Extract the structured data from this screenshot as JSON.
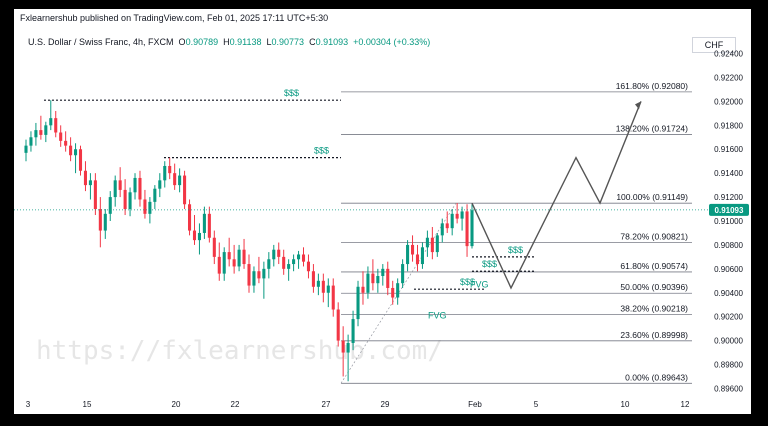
{
  "header": {
    "published": "Fxlearnershub published on TradingView.com, Feb 01, 2025 17:11 UTC+5:30",
    "symbol": "U.S. Dollar / Swiss Franc, 4h, FXCM",
    "o_label": "O",
    "o_value": "0.90789",
    "h_label": "H",
    "h_value": "0.91138",
    "l_label": "L",
    "l_value": "0.90773",
    "c_label": "C",
    "c_value": "0.91093",
    "change": "+0.00304 (+0.33%)",
    "currency": "CHF"
  },
  "watermark": "https://fxlearnershub.com/",
  "colors": {
    "up": "#089981",
    "down": "#f23645",
    "text": "#131722",
    "annotation": "#089981",
    "projection": "#555555",
    "price_badge": "#089981"
  },
  "chart_data": {
    "type": "candlestick",
    "title": "",
    "x_ticks": [
      "3",
      "15",
      "20",
      "22",
      "27",
      "29",
      "Feb",
      "5",
      "10",
      "12"
    ],
    "y_ticks": [
      0.896,
      0.898,
      0.9,
      0.902,
      0.904,
      0.906,
      0.908,
      0.91,
      0.912,
      0.914,
      0.916,
      0.918,
      0.92,
      0.922,
      0.924
    ],
    "ylim": [
      0.8952,
      0.9248
    ],
    "y_tick_labels": [
      "0.89600",
      "0.89800",
      "0.90000",
      "0.90200",
      "0.90400",
      "0.90600",
      "0.90800",
      "0.91000",
      "0.91200",
      "0.91400",
      "0.91600",
      "0.91800",
      "0.92000",
      "0.92200",
      "0.92400"
    ],
    "last_price": 0.91093,
    "last_price_label": "0.91093",
    "candles": [
      [
        0.9157,
        0.9168,
        0.915,
        0.9163
      ],
      [
        0.9163,
        0.9175,
        0.9158,
        0.917
      ],
      [
        0.917,
        0.9182,
        0.9163,
        0.9176
      ],
      [
        0.9176,
        0.9188,
        0.9168,
        0.9172
      ],
      [
        0.9172,
        0.9183,
        0.9166,
        0.918
      ],
      [
        0.918,
        0.9201,
        0.9176,
        0.9186
      ],
      [
        0.9186,
        0.9192,
        0.917,
        0.9174
      ],
      [
        0.9174,
        0.918,
        0.9162,
        0.9167
      ],
      [
        0.9167,
        0.9175,
        0.9158,
        0.9163
      ],
      [
        0.9163,
        0.917,
        0.915,
        0.9155
      ],
      [
        0.9155,
        0.9165,
        0.914,
        0.916
      ],
      [
        0.916,
        0.9163,
        0.9138,
        0.9142
      ],
      [
        0.9142,
        0.915,
        0.9125,
        0.913
      ],
      [
        0.913,
        0.914,
        0.9118,
        0.9134
      ],
      [
        0.9134,
        0.914,
        0.9105,
        0.911
      ],
      [
        0.911,
        0.912,
        0.9078,
        0.9092
      ],
      [
        0.9092,
        0.911,
        0.9085,
        0.9106
      ],
      [
        0.9106,
        0.9125,
        0.91,
        0.912
      ],
      [
        0.912,
        0.9138,
        0.9112,
        0.9134
      ],
      [
        0.9134,
        0.9145,
        0.912,
        0.9126
      ],
      [
        0.9126,
        0.9135,
        0.9105,
        0.911
      ],
      [
        0.911,
        0.9128,
        0.9104,
        0.9124
      ],
      [
        0.9124,
        0.914,
        0.9118,
        0.9136
      ],
      [
        0.9136,
        0.9142,
        0.9112,
        0.9118
      ],
      [
        0.9118,
        0.9126,
        0.9102,
        0.9106
      ],
      [
        0.9106,
        0.912,
        0.9098,
        0.9116
      ],
      [
        0.9116,
        0.913,
        0.911,
        0.9127
      ],
      [
        0.9127,
        0.914,
        0.912,
        0.9134
      ],
      [
        0.9134,
        0.915,
        0.9128,
        0.9146
      ],
      [
        0.9146,
        0.9153,
        0.9135,
        0.914
      ],
      [
        0.914,
        0.9148,
        0.9126,
        0.913
      ],
      [
        0.913,
        0.9144,
        0.9124,
        0.9138
      ],
      [
        0.9138,
        0.9142,
        0.911,
        0.9114
      ],
      [
        0.9114,
        0.9118,
        0.9088,
        0.9092
      ],
      [
        0.9092,
        0.9105,
        0.908,
        0.9084
      ],
      [
        0.9084,
        0.9098,
        0.9072,
        0.909
      ],
      [
        0.909,
        0.9112,
        0.9085,
        0.9106
      ],
      [
        0.9106,
        0.9112,
        0.9082,
        0.9086
      ],
      [
        0.9086,
        0.9092,
        0.9064,
        0.907
      ],
      [
        0.907,
        0.9082,
        0.905,
        0.9056
      ],
      [
        0.9056,
        0.9078,
        0.905,
        0.9074
      ],
      [
        0.9074,
        0.9086,
        0.9062,
        0.9068
      ],
      [
        0.9068,
        0.908,
        0.9056,
        0.9062
      ],
      [
        0.9062,
        0.908,
        0.9058,
        0.9076
      ],
      [
        0.9076,
        0.9085,
        0.906,
        0.9064
      ],
      [
        0.9064,
        0.9072,
        0.904,
        0.9046
      ],
      [
        0.9046,
        0.9062,
        0.904,
        0.9058
      ],
      [
        0.9058,
        0.907,
        0.9048,
        0.9052
      ],
      [
        0.9052,
        0.9066,
        0.9035,
        0.906
      ],
      [
        0.906,
        0.9074,
        0.9052,
        0.9068
      ],
      [
        0.9068,
        0.908,
        0.9062,
        0.9076
      ],
      [
        0.9076,
        0.9082,
        0.9064,
        0.907
      ],
      [
        0.907,
        0.9076,
        0.9055,
        0.906
      ],
      [
        0.906,
        0.9068,
        0.905,
        0.9064
      ],
      [
        0.9064,
        0.9072,
        0.9058,
        0.9068
      ],
      [
        0.9068,
        0.9075,
        0.906,
        0.9072
      ],
      [
        0.9072,
        0.9078,
        0.9062,
        0.9066
      ],
      [
        0.9066,
        0.9072,
        0.9052,
        0.9058
      ],
      [
        0.9058,
        0.9064,
        0.904,
        0.9045
      ],
      [
        0.9045,
        0.9056,
        0.9038,
        0.905
      ],
      [
        0.905,
        0.9056,
        0.9032,
        0.904
      ],
      [
        0.904,
        0.9052,
        0.9028,
        0.9046
      ],
      [
        0.9046,
        0.9052,
        0.902,
        0.9026
      ],
      [
        0.9026,
        0.9032,
        0.8995,
        0.9
      ],
      [
        0.9,
        0.9012,
        0.897,
        0.899
      ],
      [
        0.899,
        0.9005,
        0.8966,
        0.8998
      ],
      [
        0.8998,
        0.9025,
        0.8992,
        0.9018
      ],
      [
        0.9018,
        0.905,
        0.9012,
        0.9045
      ],
      [
        0.9045,
        0.9058,
        0.903,
        0.904
      ],
      [
        0.904,
        0.9062,
        0.9035,
        0.9056
      ],
      [
        0.9056,
        0.9068,
        0.9042,
        0.9048
      ],
      [
        0.9048,
        0.906,
        0.904,
        0.9054
      ],
      [
        0.9054,
        0.9064,
        0.9046,
        0.906
      ],
      [
        0.906,
        0.9066,
        0.9038,
        0.9044
      ],
      [
        0.9044,
        0.905,
        0.903,
        0.9036
      ],
      [
        0.9036,
        0.9052,
        0.903,
        0.9048
      ],
      [
        0.9048,
        0.9068,
        0.9044,
        0.9064
      ],
      [
        0.9064,
        0.9084,
        0.9058,
        0.908
      ],
      [
        0.908,
        0.9088,
        0.9066,
        0.9072
      ],
      [
        0.9072,
        0.908,
        0.9058,
        0.9064
      ],
      [
        0.9064,
        0.9082,
        0.906,
        0.9078
      ],
      [
        0.9078,
        0.9092,
        0.907,
        0.9086
      ],
      [
        0.9086,
        0.9095,
        0.9068,
        0.9074
      ],
      [
        0.9074,
        0.909,
        0.907,
        0.9088
      ],
      [
        0.9088,
        0.9102,
        0.9082,
        0.9098
      ],
      [
        0.9098,
        0.9108,
        0.909,
        0.9094
      ],
      [
        0.9094,
        0.911,
        0.9088,
        0.9106
      ],
      [
        0.9106,
        0.9115,
        0.9098,
        0.9102
      ],
      [
        0.9102,
        0.9112,
        0.9092,
        0.9108
      ],
      [
        0.9108,
        0.9114,
        0.907,
        0.9079
      ],
      [
        0.9079,
        0.9114,
        0.9077,
        0.9109
      ]
    ],
    "fib_levels": [
      {
        "label": "0.00% (0.89643)",
        "value": 0.89643
      },
      {
        "label": "23.60% (0.89998)",
        "value": 0.89998
      },
      {
        "label": "38.20% (0.90218)",
        "value": 0.90218
      },
      {
        "label": "50.00% (0.90396)",
        "value": 0.90396
      },
      {
        "label": "61.80% (0.90574)",
        "value": 0.90574
      },
      {
        "label": "78.20% (0.90821)",
        "value": 0.90821
      },
      {
        "label": "100.00% (0.91149)",
        "value": 0.91149
      },
      {
        "label": "138.20% (0.91724)",
        "value": 0.91724
      },
      {
        "label": "161.80% (0.92080)",
        "value": 0.9208
      }
    ],
    "liquidity_levels": [
      {
        "label": "$$$",
        "value": 0.9201
      },
      {
        "label": "$$$",
        "value": 0.9153
      },
      {
        "label": "$$$",
        "value": 0.907
      },
      {
        "label": "$$$",
        "value": 0.9058
      },
      {
        "label": "$$$",
        "value": 0.9043
      }
    ],
    "fvg_labels": [
      {
        "label": "FVG",
        "value": 0.9047
      },
      {
        "label": "FVG",
        "value": 0.9021
      }
    ],
    "projection_path": [
      0.91149,
      0.9044,
      0.9153,
      0.9115,
      0.92
    ]
  }
}
